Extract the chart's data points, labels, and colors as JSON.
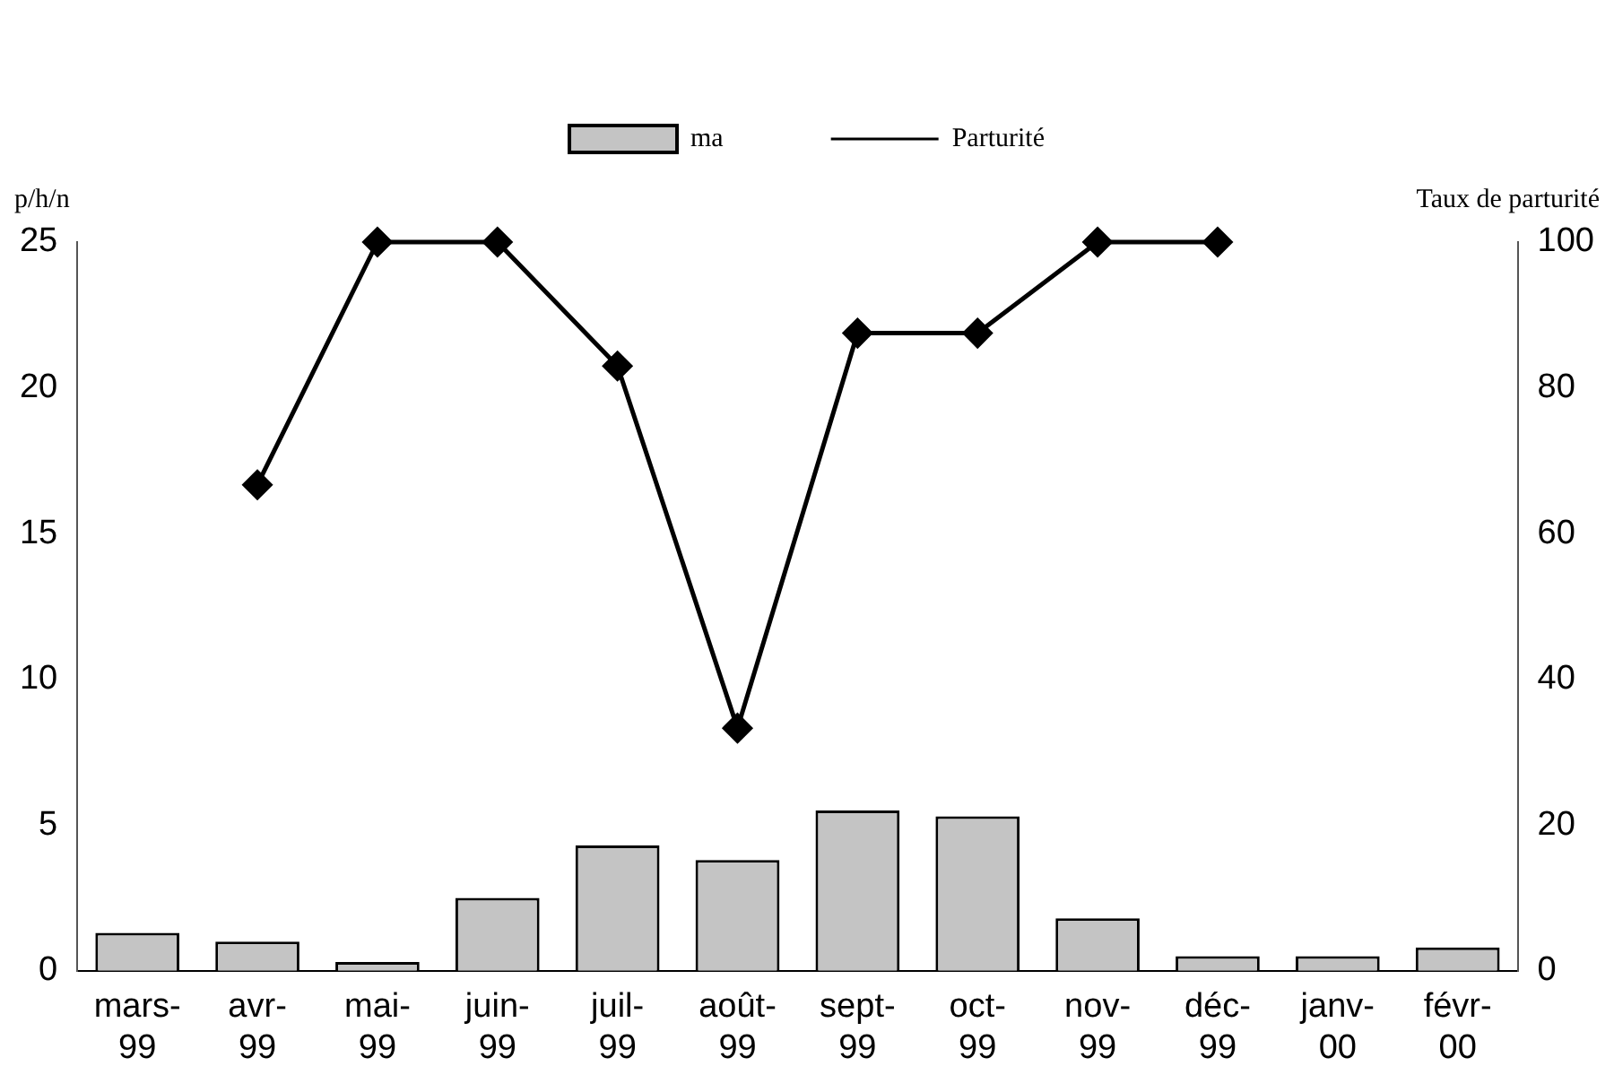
{
  "chart_data": {
    "type": "bar",
    "ylabel": "p/h/n",
    "y2label": "Taux de parturité",
    "categories": [
      "mars-99",
      "avr-99",
      "mai-99",
      "juin-99",
      "juil-99",
      "août-99",
      "sept-99",
      "oct-99",
      "nov-99",
      "déc-99",
      "janv-00",
      "févr-00"
    ],
    "series": [
      {
        "name": "ma",
        "color": "#c4c4c4",
        "values": [
          1.3,
          1.0,
          0.3,
          2.5,
          4.3,
          3.8,
          5.5,
          5.3,
          1.8,
          0.5,
          0.5,
          0.8
        ]
      },
      {
        "name": "Parturité",
        "type": "line",
        "axis": "y2",
        "color": "#000000",
        "values": [
          null,
          66.7,
          100,
          100,
          83,
          33.3,
          87.5,
          87.5,
          100,
          100,
          null,
          null
        ]
      }
    ],
    "ylim": [
      0,
      25
    ],
    "yticks": [
      0,
      5,
      10,
      15,
      20,
      25
    ],
    "y2lim": [
      0,
      100
    ],
    "y2ticks": [
      0,
      20,
      40,
      60,
      80,
      100
    ],
    "grid": false,
    "legend": "top",
    "marker": "diamond",
    "line_style": "solid"
  }
}
